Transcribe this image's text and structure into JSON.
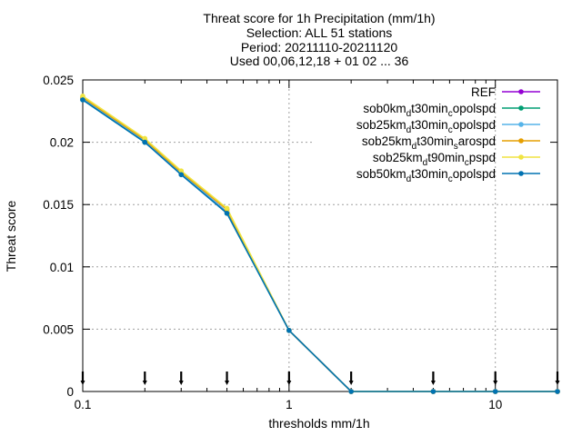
{
  "chart_data": {
    "type": "line",
    "title_lines": [
      "Threat score  for 1h Precipitation (mm/1h)",
      "Selection: ALL      51 stations",
      "Period: 20211110-20211120",
      "Used 00,06,12,18 + 01 02 ... 36"
    ],
    "xlabel": "thresholds mm/1h",
    "ylabel": "Threat score",
    "x_scale": "log",
    "xlim": [
      0.1,
      20
    ],
    "ylim": [
      0,
      0.025
    ],
    "x_ticks": [
      0.1,
      1,
      10
    ],
    "x_tick_labels": [
      "0.1",
      "1",
      "10"
    ],
    "y_ticks": [
      0,
      0.005,
      0.01,
      0.015,
      0.02,
      0.025
    ],
    "y_tick_labels": [
      "0",
      "0.005",
      "0.01",
      "0.015",
      "0.02",
      "0.025"
    ],
    "grid": true,
    "legend_position": "top-right",
    "x": [
      0.1,
      0.2,
      0.3,
      0.5,
      1,
      2,
      5,
      10,
      20
    ],
    "series": [
      {
        "name": "REF",
        "color": "#9400d3",
        "values": [
          0.0235,
          0.0201,
          0.0175,
          0.0144,
          0.0049,
          0,
          0,
          0,
          0
        ]
      },
      {
        "name": "sob0km_d t30min_c opolspd",
        "label_parts": [
          "sob0km",
          "d",
          "t30min",
          "c",
          "opolspd"
        ],
        "color": "#009e73",
        "values": [
          0.0234,
          0.02,
          0.0175,
          0.0143,
          0.0049,
          0,
          0,
          0,
          0
        ]
      },
      {
        "name": "sob25km_d t30min_c opolspd",
        "label_parts": [
          "sob25km",
          "d",
          "t30min",
          "c",
          "opolspd"
        ],
        "color": "#56b4e9",
        "values": [
          0.0235,
          0.0201,
          0.0175,
          0.0144,
          0.0049,
          0,
          0,
          0,
          0
        ]
      },
      {
        "name": "sob25km_d t30min_s arospd",
        "label_parts": [
          "sob25km",
          "d",
          "t30min",
          "s",
          "arospd"
        ],
        "color": "#e69f00",
        "values": [
          0.0236,
          0.0202,
          0.0176,
          0.0146,
          0.0049,
          0,
          0,
          0,
          0
        ]
      },
      {
        "name": "sob25km_d t90min_c pspd",
        "label_parts": [
          "sob25km",
          "d",
          "t90min",
          "c",
          "pspd"
        ],
        "color": "#f0e442",
        "values": [
          0.0237,
          0.0203,
          0.0177,
          0.0147,
          0.0049,
          0,
          0,
          0,
          0
        ]
      },
      {
        "name": "sob50km_d t30min_c opolspd",
        "label_parts": [
          "sob50km",
          "d",
          "t30min",
          "c",
          "opolspd"
        ],
        "color": "#0072b2",
        "values": [
          0.0234,
          0.02,
          0.0174,
          0.0143,
          0.0049,
          0,
          0,
          0,
          0
        ]
      }
    ],
    "marker_ticks_x": [
      0.1,
      0.2,
      0.3,
      0.5,
      1,
      2,
      5,
      10,
      20
    ]
  }
}
